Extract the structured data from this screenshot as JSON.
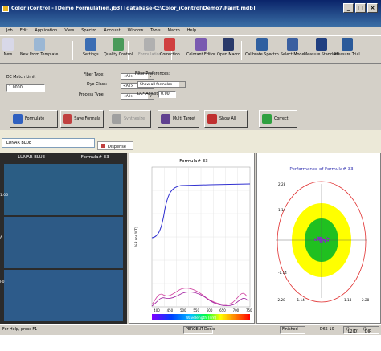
{
  "window": {
    "title": "Color iControl - [Demo Formulation.jb3] [database-C:\\Color_iControl\\Demo7\\Paint.mdb]"
  },
  "menu": [
    "Job",
    "Edit",
    "Application",
    "View",
    "Spectro",
    "Account",
    "Window",
    "Tools",
    "Macro",
    "Help"
  ],
  "toolbar": [
    {
      "label": "New",
      "color": "#d8d8e8"
    },
    {
      "label": "New From Template",
      "color": "#9bb7d4"
    },
    {
      "label": "Settings",
      "color": "#3b6db3"
    },
    {
      "label": "Quality Control",
      "color": "#4a9a5a"
    },
    {
      "label": "Formulation",
      "color": "#b0b0b0"
    },
    {
      "label": "Correction",
      "color": "#d04040"
    },
    {
      "label": "Colorant Editor",
      "color": "#7a5ab0"
    },
    {
      "label": "Open Macro",
      "color": "#2a3a6a"
    },
    {
      "label": "Calibrate Spectro",
      "color": "#3060a0"
    },
    {
      "label": "Select Mode",
      "color": "#3a5fa0"
    },
    {
      "label": "Measure Standard",
      "color": "#203f80"
    },
    {
      "label": "Measure Trial",
      "color": "#2a5a9a"
    }
  ],
  "form": {
    "de_match_label": "DE Match Limit",
    "de_match_value": "1.0000",
    "fiber_type_label": "Fiber Type:",
    "dye_class_label": "Dye Class:",
    "process_type_label": "Process Type:",
    "combo_placeholder": "<All>",
    "filter_pref_label": "Filter Preferences:",
    "filter_pref_value": "Show all formulas",
    "dl_adjust_label": "DL* Adjust",
    "dl_adjust_value": "0.00"
  },
  "actions": [
    {
      "label": "Formulate",
      "enabled": true
    },
    {
      "label": "Save Formula",
      "enabled": true
    },
    {
      "label": "Synthesize",
      "enabled": false
    },
    {
      "label": "Multi Target",
      "enabled": true
    },
    {
      "label": "Show All",
      "enabled": true
    },
    {
      "label": "Correct",
      "enabled": true
    }
  ],
  "tabs": {
    "job_tab": "LUNAR BLUE",
    "dispense_tab": "Dispense"
  },
  "swatch": {
    "standard_name": "LUNAR BLUE",
    "formula_name": "Formula# 33",
    "ticks": [
      "1.06",
      "A",
      "F0"
    ],
    "colors": {
      "standard": "#2b5d84",
      "trial": "#2d5a86",
      "bottom": "#2d5b8a"
    }
  },
  "spectral_chart": {
    "title": "Formula# 33",
    "ylabel": "%R (or %T)",
    "xlabel": "Wavelength (nm)",
    "x_ticks": [
      "400",
      "450",
      "500",
      "550",
      "600",
      "650",
      "700",
      "750"
    ],
    "colors": {
      "std": "#3030d0",
      "r1": "#d040a0",
      "r2": "#a020a0"
    }
  },
  "performance_chart": {
    "title": "Performance of Formula# 33",
    "y_ticks": [
      "2.28",
      "1.14",
      "-1.14"
    ],
    "x_ticks": [
      "-2.28",
      "-1.14",
      "1.14",
      "2.28"
    ],
    "colors": {
      "outer": "#e03030",
      "yellow": "#ffff00",
      "green": "#20c020",
      "points": "#8030c0"
    }
  },
  "status": {
    "help": "For Help, press F1",
    "units": "PERCENT",
    "user": "Denis",
    "state": "Finished",
    "illum": "D65-10",
    "obs": "L2(D)",
    "mode": "DIP"
  }
}
